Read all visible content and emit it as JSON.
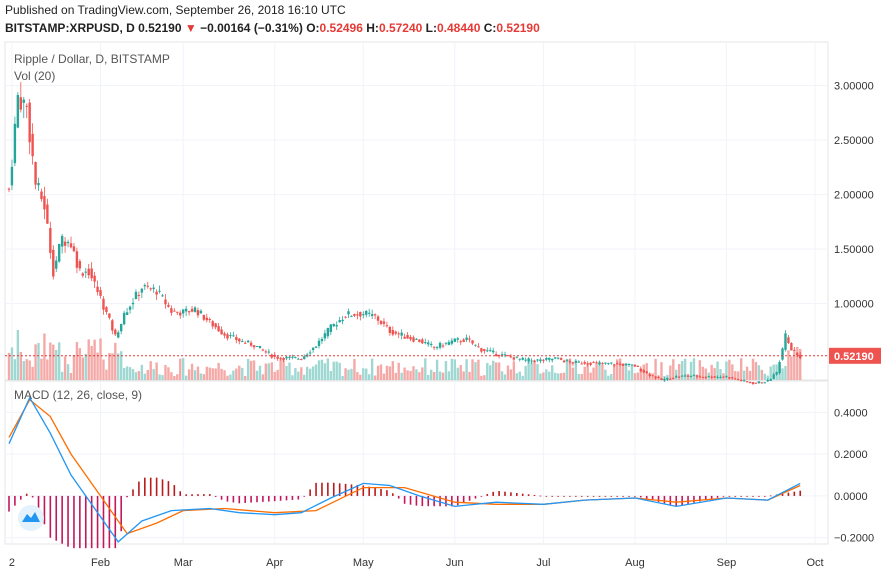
{
  "header": {
    "published": "Published on TradingView.com, September 26, 2018 16:10 UTC",
    "symbol": "BITSTAMP:XRPUSD, D",
    "last": "0.52190",
    "change": "−0.00164 (−0.31%)",
    "o_label": "O:",
    "o": "0.52496",
    "h_label": "H:",
    "h": "0.57240",
    "l_label": "L:",
    "l": "0.48440",
    "c_label": "C:",
    "c": "0.52190"
  },
  "colors": {
    "up": "#26a69a",
    "down": "#ef5350",
    "macd": "#2196f3",
    "signal": "#ff6d00",
    "hist_up": "#b71c1c",
    "hist_down": "#c2185b"
  },
  "icons": {
    "logo": "tradingview-cloud-icon"
  },
  "chart_data": [
    {
      "type": "candlestick",
      "title": "Ripple / Dollar, D, BITSTAMP",
      "volume_label": "Vol (20)",
      "x_ticks": [
        "2",
        "Feb",
        "Mar",
        "Apr",
        "May",
        "Jun",
        "Jul",
        "Aug",
        "Sep",
        "Oct"
      ],
      "y_ticks": [
        "3.00000",
        "2.50000",
        "2.00000",
        "1.50000",
        "1.00000"
      ],
      "ylim": [
        0.3,
        3.4
      ],
      "last_price_label": "0.52190",
      "last_price": 0.5219,
      "close_series": [
        {
          "date": "2018-01-01",
          "close": 2.05
        },
        {
          "date": "2018-01-04",
          "close": 2.9
        },
        {
          "date": "2018-01-07",
          "close": 2.8
        },
        {
          "date": "2018-01-10",
          "close": 2.1
        },
        {
          "date": "2018-01-13",
          "close": 1.9
        },
        {
          "date": "2018-01-16",
          "close": 1.3
        },
        {
          "date": "2018-01-19",
          "close": 1.6
        },
        {
          "date": "2018-01-22",
          "close": 1.55
        },
        {
          "date": "2018-01-25",
          "close": 1.3
        },
        {
          "date": "2018-01-28",
          "close": 1.3
        },
        {
          "date": "2018-02-01",
          "close": 1.05
        },
        {
          "date": "2018-02-06",
          "close": 0.7
        },
        {
          "date": "2018-02-10",
          "close": 0.95
        },
        {
          "date": "2018-02-15",
          "close": 1.15
        },
        {
          "date": "2018-02-20",
          "close": 1.12
        },
        {
          "date": "2018-02-25",
          "close": 0.93
        },
        {
          "date": "2018-03-01",
          "close": 0.92
        },
        {
          "date": "2018-03-05",
          "close": 0.95
        },
        {
          "date": "2018-03-10",
          "close": 0.83
        },
        {
          "date": "2018-03-15",
          "close": 0.72
        },
        {
          "date": "2018-03-20",
          "close": 0.66
        },
        {
          "date": "2018-03-25",
          "close": 0.62
        },
        {
          "date": "2018-04-01",
          "close": 0.51
        },
        {
          "date": "2018-04-06",
          "close": 0.5
        },
        {
          "date": "2018-04-10",
          "close": 0.5
        },
        {
          "date": "2018-04-15",
          "close": 0.62
        },
        {
          "date": "2018-04-20",
          "close": 0.78
        },
        {
          "date": "2018-04-25",
          "close": 0.9
        },
        {
          "date": "2018-05-01",
          "close": 0.91
        },
        {
          "date": "2018-05-05",
          "close": 0.88
        },
        {
          "date": "2018-05-10",
          "close": 0.75
        },
        {
          "date": "2018-05-15",
          "close": 0.7
        },
        {
          "date": "2018-05-20",
          "close": 0.66
        },
        {
          "date": "2018-05-25",
          "close": 0.6
        },
        {
          "date": "2018-06-01",
          "close": 0.66
        },
        {
          "date": "2018-06-05",
          "close": 0.67
        },
        {
          "date": "2018-06-10",
          "close": 0.58
        },
        {
          "date": "2018-06-15",
          "close": 0.54
        },
        {
          "date": "2018-06-20",
          "close": 0.51
        },
        {
          "date": "2018-06-25",
          "close": 0.48
        },
        {
          "date": "2018-07-01",
          "close": 0.48
        },
        {
          "date": "2018-07-05",
          "close": 0.5
        },
        {
          "date": "2018-07-10",
          "close": 0.46
        },
        {
          "date": "2018-07-15",
          "close": 0.46
        },
        {
          "date": "2018-07-20",
          "close": 0.45
        },
        {
          "date": "2018-07-25",
          "close": 0.45
        },
        {
          "date": "2018-08-01",
          "close": 0.43
        },
        {
          "date": "2018-08-05",
          "close": 0.36
        },
        {
          "date": "2018-08-10",
          "close": 0.3
        },
        {
          "date": "2018-08-15",
          "close": 0.33
        },
        {
          "date": "2018-08-20",
          "close": 0.34
        },
        {
          "date": "2018-08-25",
          "close": 0.33
        },
        {
          "date": "2018-09-01",
          "close": 0.33
        },
        {
          "date": "2018-09-05",
          "close": 0.3
        },
        {
          "date": "2018-09-10",
          "close": 0.27
        },
        {
          "date": "2018-09-15",
          "close": 0.29
        },
        {
          "date": "2018-09-18",
          "close": 0.37
        },
        {
          "date": "2018-09-21",
          "close": 0.7
        },
        {
          "date": "2018-09-23",
          "close": 0.58
        },
        {
          "date": "2018-09-26",
          "close": 0.52
        }
      ]
    },
    {
      "type": "line",
      "title": "MACD (12, 26, close, 9)",
      "x_ticks": [
        "2",
        "Feb",
        "Mar",
        "Apr",
        "May",
        "Jun",
        "Jul",
        "Aug",
        "Sep",
        "Oct"
      ],
      "y_ticks": [
        "0.4000",
        "0.2000",
        "0.0000",
        "−0.2000"
      ],
      "ylim": [
        -0.23,
        0.55
      ],
      "series": [
        {
          "name": "MACD",
          "values": [
            {
              "date": "2018-01-01",
              "value": 0.25
            },
            {
              "date": "2018-01-08",
              "value": 0.47
            },
            {
              "date": "2018-01-15",
              "value": 0.3
            },
            {
              "date": "2018-01-22",
              "value": 0.1
            },
            {
              "date": "2018-02-01",
              "value": -0.1
            },
            {
              "date": "2018-02-07",
              "value": -0.22
            },
            {
              "date": "2018-02-15",
              "value": -0.12
            },
            {
              "date": "2018-02-25",
              "value": -0.07
            },
            {
              "date": "2018-03-10",
              "value": -0.06
            },
            {
              "date": "2018-03-20",
              "value": -0.08
            },
            {
              "date": "2018-04-01",
              "value": -0.09
            },
            {
              "date": "2018-04-10",
              "value": -0.08
            },
            {
              "date": "2018-04-20",
              "value": -0.01
            },
            {
              "date": "2018-05-01",
              "value": 0.06
            },
            {
              "date": "2018-05-10",
              "value": 0.05
            },
            {
              "date": "2018-05-20",
              "value": 0.0
            },
            {
              "date": "2018-06-01",
              "value": -0.05
            },
            {
              "date": "2018-06-15",
              "value": -0.03
            },
            {
              "date": "2018-07-01",
              "value": -0.04
            },
            {
              "date": "2018-07-15",
              "value": -0.02
            },
            {
              "date": "2018-08-01",
              "value": -0.01
            },
            {
              "date": "2018-08-15",
              "value": -0.05
            },
            {
              "date": "2018-09-01",
              "value": -0.01
            },
            {
              "date": "2018-09-15",
              "value": -0.02
            },
            {
              "date": "2018-09-26",
              "value": 0.06
            }
          ]
        },
        {
          "name": "Signal",
          "values": [
            {
              "date": "2018-01-01",
              "value": 0.28
            },
            {
              "date": "2018-01-08",
              "value": 0.46
            },
            {
              "date": "2018-01-15",
              "value": 0.38
            },
            {
              "date": "2018-01-22",
              "value": 0.2
            },
            {
              "date": "2018-02-01",
              "value": 0.0
            },
            {
              "date": "2018-02-10",
              "value": -0.18
            },
            {
              "date": "2018-02-20",
              "value": -0.13
            },
            {
              "date": "2018-03-01",
              "value": -0.07
            },
            {
              "date": "2018-03-15",
              "value": -0.06
            },
            {
              "date": "2018-04-01",
              "value": -0.08
            },
            {
              "date": "2018-04-15",
              "value": -0.07
            },
            {
              "date": "2018-05-01",
              "value": 0.04
            },
            {
              "date": "2018-05-15",
              "value": 0.04
            },
            {
              "date": "2018-06-01",
              "value": -0.03
            },
            {
              "date": "2018-06-15",
              "value": -0.04
            },
            {
              "date": "2018-07-01",
              "value": -0.04
            },
            {
              "date": "2018-07-15",
              "value": -0.02
            },
            {
              "date": "2018-08-01",
              "value": -0.01
            },
            {
              "date": "2018-08-15",
              "value": -0.03
            },
            {
              "date": "2018-09-01",
              "value": -0.01
            },
            {
              "date": "2018-09-15",
              "value": -0.02
            },
            {
              "date": "2018-09-26",
              "value": 0.05
            }
          ]
        }
      ]
    }
  ]
}
